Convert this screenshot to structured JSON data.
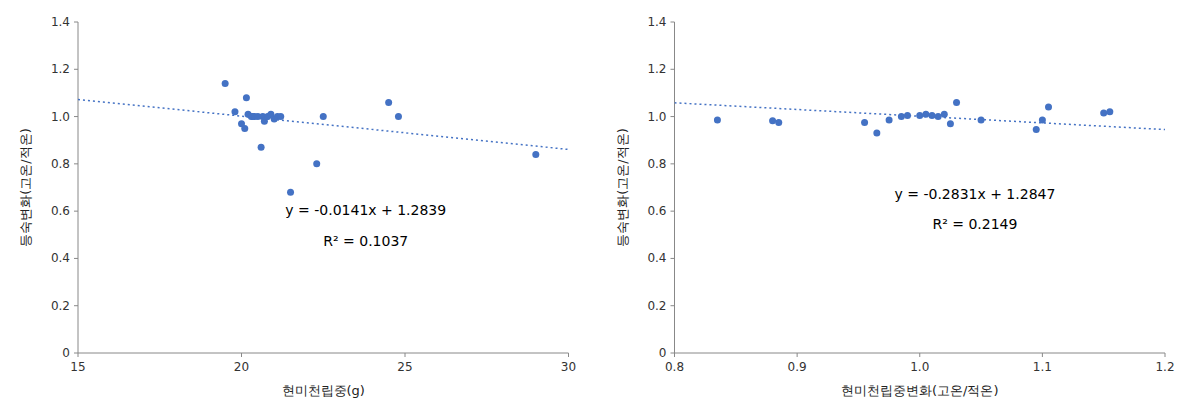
{
  "chart_data": [
    {
      "type": "scatter",
      "x": [
        19.5,
        19.8,
        20.0,
        20.1,
        20.15,
        20.2,
        20.3,
        20.35,
        20.4,
        20.5,
        20.6,
        20.65,
        20.7,
        20.8,
        20.9,
        21.0,
        21.1,
        21.2,
        21.5,
        22.3,
        22.5,
        24.5,
        24.8,
        29.0
      ],
      "values": [
        1.14,
        1.02,
        0.97,
        0.95,
        1.08,
        1.01,
        1.0,
        1.0,
        1.0,
        1.0,
        0.87,
        1.0,
        0.98,
        1.0,
        1.01,
        0.99,
        1.0,
        1.0,
        0.68,
        0.8,
        1.0,
        1.06,
        1.0,
        0.84
      ],
      "color": "#4472C4",
      "trendline": {
        "slope": -0.0141,
        "intercept": 1.2839,
        "color": "#4472C4",
        "line_style": "dotted"
      },
      "annotations": [
        {
          "text": "y = -0.0141x + 1.2839",
          "x": 23.8,
          "y": 0.6
        },
        {
          "text": "R² = 0.1037",
          "x": 23.8,
          "y": 0.47
        }
      ],
      "xlim": [
        15,
        30
      ],
      "ylim": [
        0,
        1.4
      ],
      "xticks": [
        15,
        20,
        25,
        30
      ],
      "yticks": [
        0,
        0.2,
        0.4,
        0.6,
        0.8,
        {
          "value": 1,
          "label": "1.0"
        },
        1.2,
        1.4
      ],
      "xlabel": "현미천립중(g)",
      "ylabel": "등숙변화(고온/적온)",
      "grid": false
    },
    {
      "type": "scatter",
      "x": [
        0.835,
        0.88,
        0.885,
        0.955,
        0.965,
        0.975,
        0.985,
        0.99,
        1.0,
        1.005,
        1.01,
        1.015,
        1.02,
        1.025,
        1.03,
        1.05,
        1.095,
        1.1,
        1.105,
        1.15,
        1.155
      ],
      "values": [
        0.985,
        0.982,
        0.975,
        0.975,
        0.93,
        0.985,
        1.0,
        1.005,
        1.005,
        1.01,
        1.005,
        1.0,
        1.01,
        0.97,
        1.06,
        0.985,
        0.945,
        0.985,
        1.04,
        1.015,
        1.02
      ],
      "color": "#4472C4",
      "trendline": {
        "slope": -0.2831,
        "intercept": 1.2847,
        "color": "#4472C4",
        "line_style": "dotted"
      },
      "annotations": [
        {
          "text": "y = -0.2831x + 1.2847",
          "x": 1.045,
          "y": 0.67
        },
        {
          "text": "R² = 0.2149",
          "x": 1.045,
          "y": 0.54
        }
      ],
      "xlim": [
        0.8,
        1.2
      ],
      "ylim": [
        0,
        1.4
      ],
      "xticks": [
        0.8,
        0.9,
        {
          "value": 1,
          "label": "1.0"
        },
        1.1,
        1.2
      ],
      "yticks": [
        0,
        0.2,
        0.4,
        0.6,
        0.8,
        {
          "value": 1,
          "label": "1.0"
        },
        1.2,
        1.4
      ],
      "xlabel": "현미천립중변화(고온/적온)",
      "ylabel": "등숙변화(고온/적온)",
      "grid": false
    }
  ]
}
